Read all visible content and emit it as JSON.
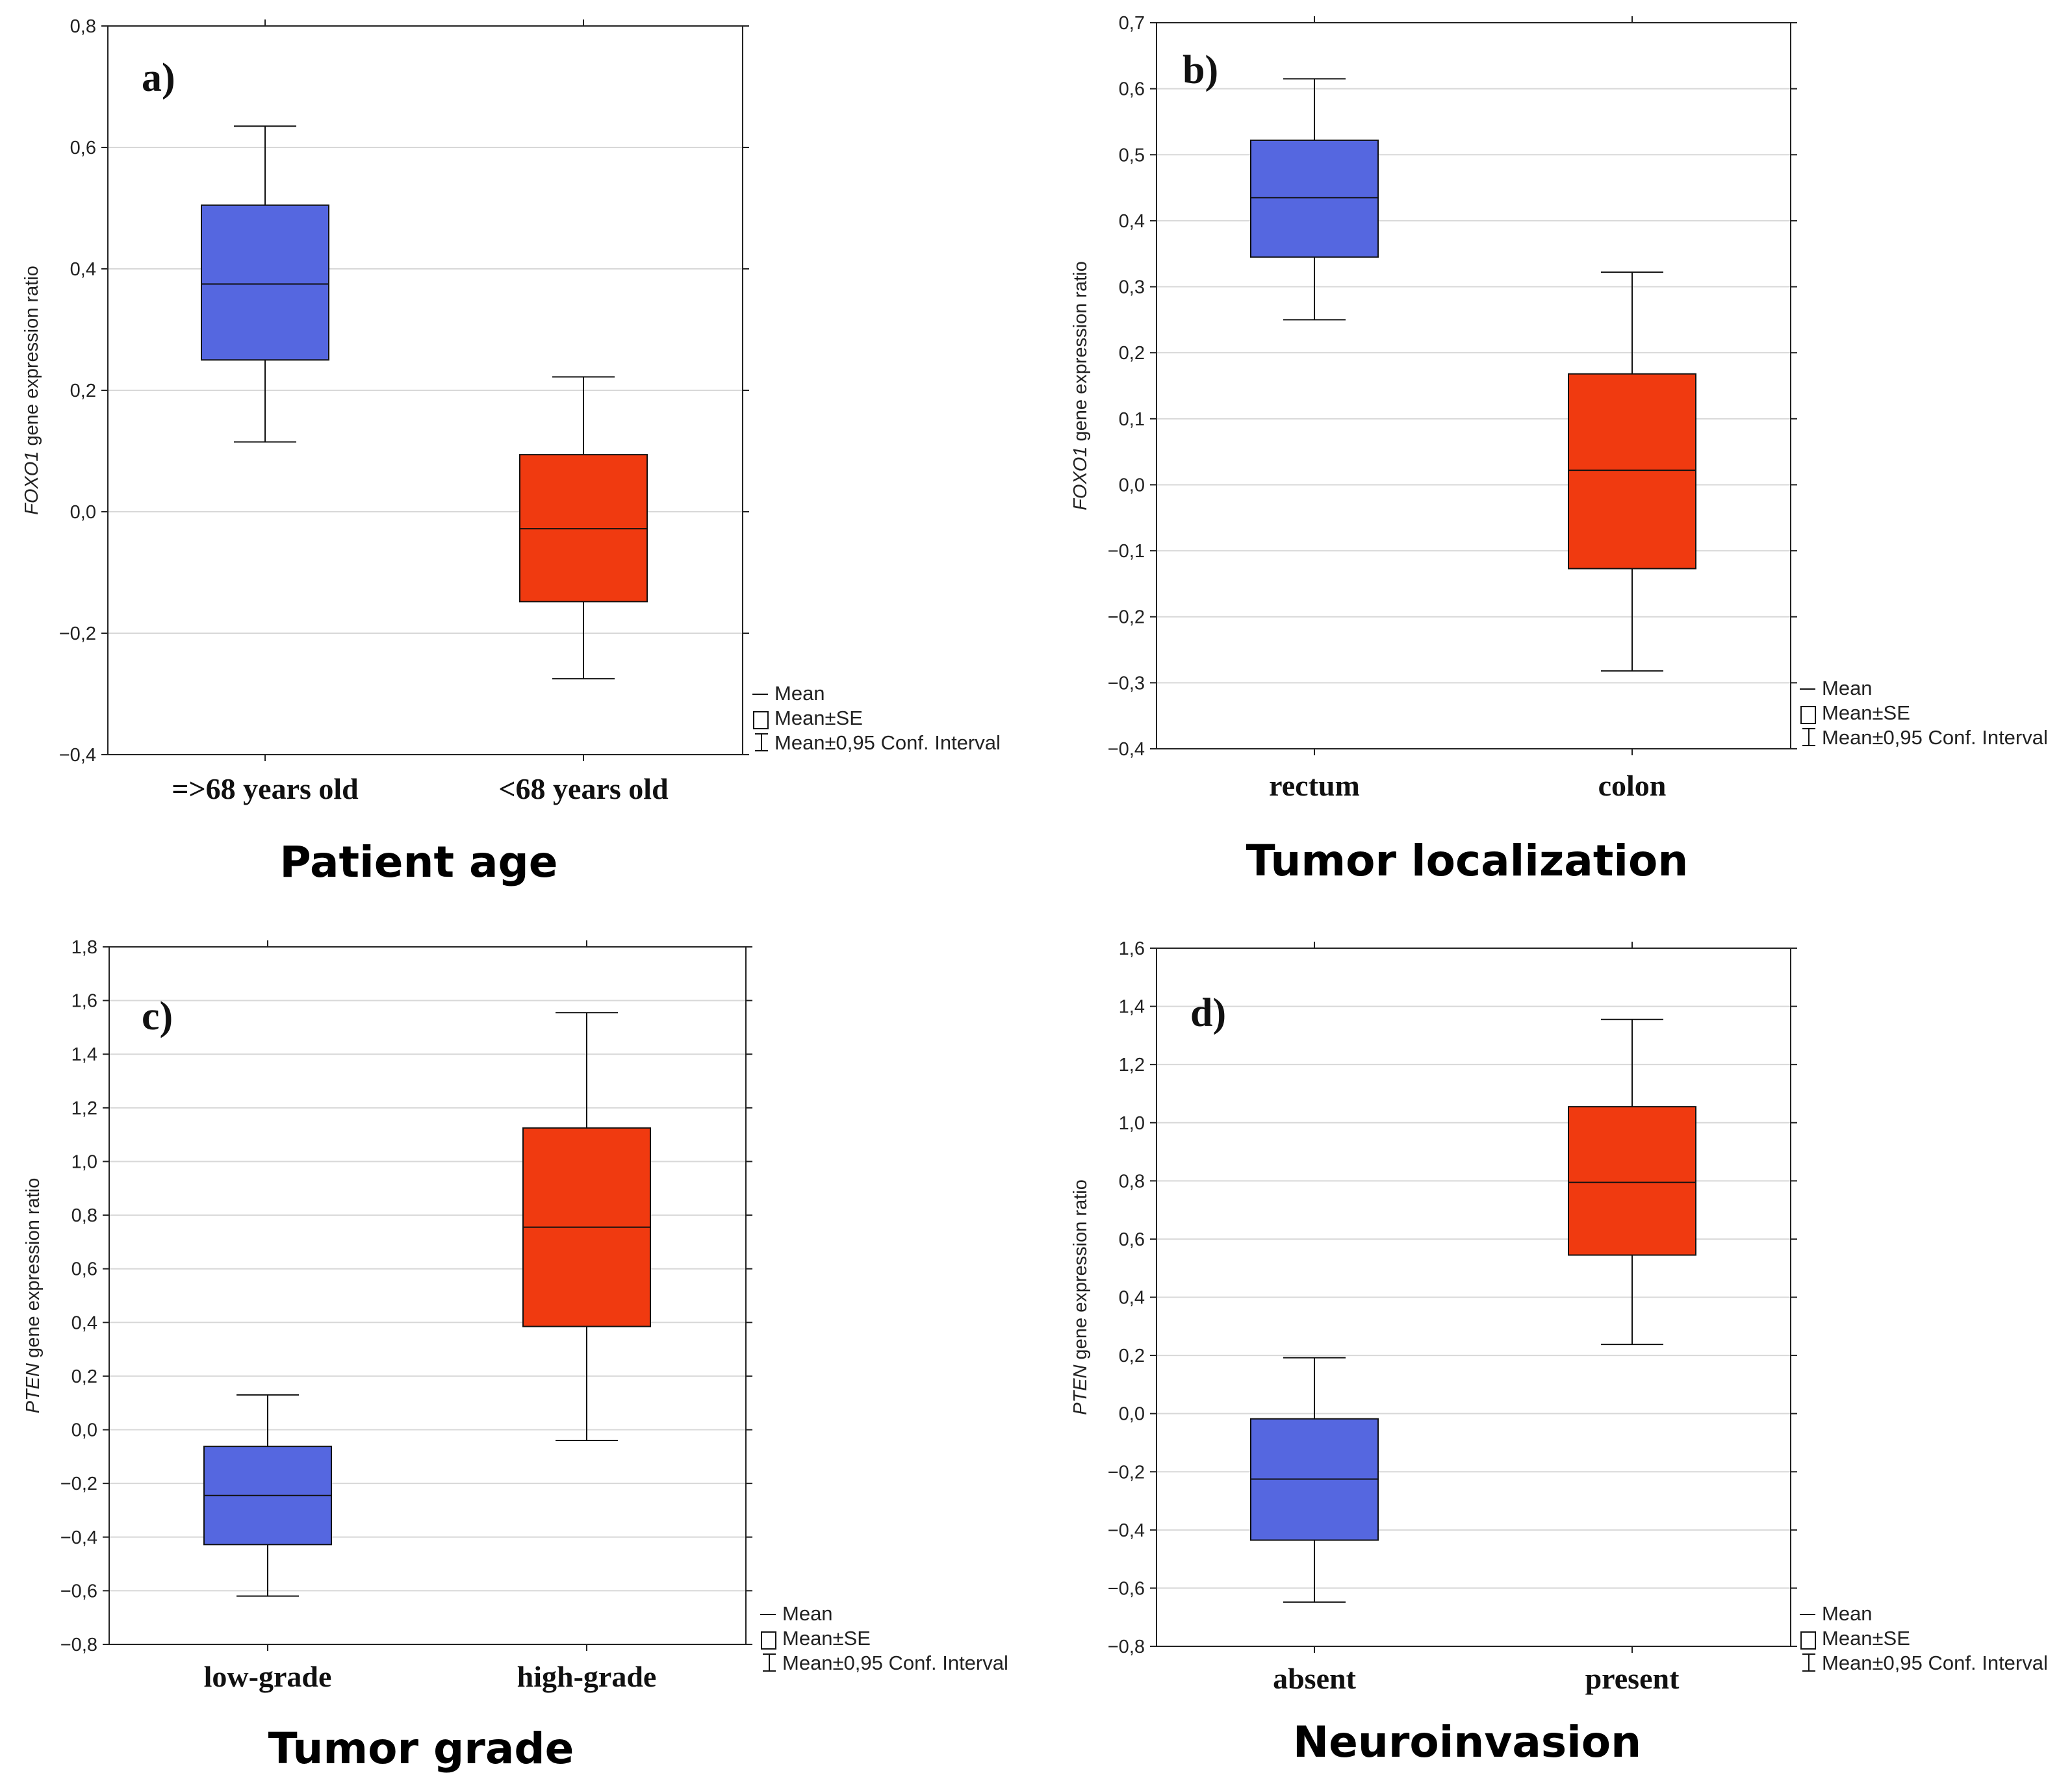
{
  "colors": {
    "low": "#5567e0",
    "high": "#f03a10",
    "grid": "#d8d8d8",
    "axis": "#222222"
  },
  "legend": {
    "mean": "Mean",
    "se": "Mean±SE",
    "ci": "Mean±0,95 Conf. Interval"
  },
  "chart_data": [
    {
      "type": "box",
      "panel": "a)",
      "title": "Patient age",
      "ylabel_gene": "FOXO1",
      "ylabel_rest": " gene expression ratio",
      "ylim": [
        -0.4,
        0.8
      ],
      "ticks": [
        -0.4,
        -0.2,
        0.0,
        0.2,
        0.4,
        0.6,
        0.8
      ],
      "tick_labels": [
        "−0,4",
        "−0,2",
        "0,0",
        "0,2",
        "0,4",
        "0,6",
        "0,8"
      ],
      "groups": [
        {
          "label": "=>68 years old",
          "color": "#5567e0",
          "mean": 0.375,
          "se_low": 0.25,
          "se_high": 0.505,
          "ci_low": 0.115,
          "ci_high": 0.635
        },
        {
          "label": "<68 years old",
          "color": "#f03a10",
          "mean": -0.028,
          "se_low": -0.148,
          "se_high": 0.094,
          "ci_low": -0.275,
          "ci_high": 0.222
        }
      ]
    },
    {
      "type": "box",
      "panel": "b)",
      "title": "Tumor localization",
      "ylabel_gene": "FOXO1",
      "ylabel_rest": " gene expression ratio",
      "ylim": [
        -0.4,
        0.7
      ],
      "ticks": [
        -0.4,
        -0.3,
        -0.2,
        -0.1,
        0.0,
        0.1,
        0.2,
        0.3,
        0.4,
        0.5,
        0.6,
        0.7
      ],
      "tick_labels": [
        "−0,4",
        "−0,3",
        "−0,2",
        "−0,1",
        "0,0",
        "0,1",
        "0,2",
        "0,3",
        "0,4",
        "0,5",
        "0,6",
        "0,7"
      ],
      "groups": [
        {
          "label": "rectum",
          "color": "#5567e0",
          "mean": 0.435,
          "se_low": 0.345,
          "se_high": 0.522,
          "ci_low": 0.25,
          "ci_high": 0.615
        },
        {
          "label": "colon",
          "color": "#f03a10",
          "mean": 0.022,
          "se_low": -0.127,
          "se_high": 0.168,
          "ci_low": -0.282,
          "ci_high": 0.322
        }
      ]
    },
    {
      "type": "box",
      "panel": "c)",
      "title": "Tumor grade",
      "ylabel_gene": "PTEN",
      "ylabel_rest": " gene expression ratio",
      "ylim": [
        -0.8,
        1.8
      ],
      "ticks": [
        -0.8,
        -0.6,
        -0.4,
        -0.2,
        0.0,
        0.2,
        0.4,
        0.6,
        0.8,
        1.0,
        1.2,
        1.4,
        1.6,
        1.8
      ],
      "tick_labels": [
        "−0,8",
        "−0,6",
        "−0,4",
        "−0,2",
        "0,0",
        "0,2",
        "0,4",
        "0,6",
        "0,8",
        "1,0",
        "1,2",
        "1,4",
        "1,6",
        "1,8"
      ],
      "groups": [
        {
          "label": "low-grade",
          "color": "#5567e0",
          "mean": -0.245,
          "se_low": -0.428,
          "se_high": -0.062,
          "ci_low": -0.62,
          "ci_high": 0.13
        },
        {
          "label": "high-grade",
          "color": "#f03a10",
          "mean": 0.755,
          "se_low": 0.385,
          "se_high": 1.125,
          "ci_low": -0.04,
          "ci_high": 1.555
        }
      ]
    },
    {
      "type": "box",
      "panel": "d)",
      "title": "Neuroinvasion",
      "ylabel_gene": "PTEN",
      "ylabel_rest": " gene expression ratio",
      "ylim": [
        -0.8,
        1.6
      ],
      "ticks": [
        -0.8,
        -0.6,
        -0.4,
        -0.2,
        0.0,
        0.2,
        0.4,
        0.6,
        0.8,
        1.0,
        1.2,
        1.4,
        1.6
      ],
      "tick_labels": [
        "−0,8",
        "−0,6",
        "−0,4",
        "−0,2",
        "0,0",
        "0,2",
        "0,4",
        "0,6",
        "0,8",
        "1,0",
        "1,2",
        "1,4",
        "1,6"
      ],
      "groups": [
        {
          "label": "absent",
          "color": "#5567e0",
          "mean": -0.225,
          "se_low": -0.435,
          "se_high": -0.018,
          "ci_low": -0.648,
          "ci_high": 0.192
        },
        {
          "label": "present",
          "color": "#f03a10",
          "mean": 0.795,
          "se_low": 0.545,
          "se_high": 1.055,
          "ci_low": 0.238,
          "ci_high": 1.355
        }
      ]
    }
  ]
}
